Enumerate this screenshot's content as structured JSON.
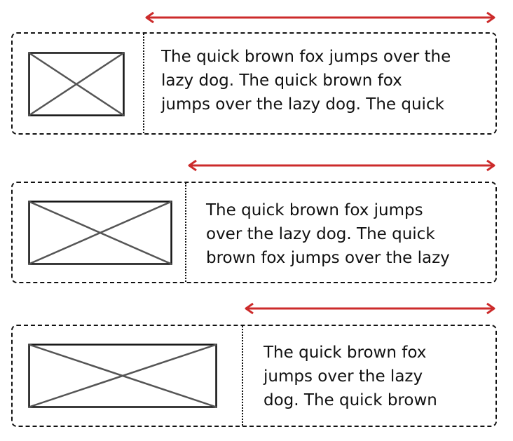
{
  "colors": {
    "arrow": "#cc2b2b",
    "border": "#111111",
    "placeholder_stroke": "#555555"
  },
  "rows": [
    {
      "lines": [
        "The quick brown fox jumps over the",
        "lazy dog. The quick brown fox",
        "jumps over the lazy dog. The quick"
      ]
    },
    {
      "lines": [
        "The quick brown fox jumps",
        "over the lazy dog. The quick",
        "brown fox jumps over the lazy"
      ]
    },
    {
      "lines": [
        "The quick brown fox",
        "jumps over the lazy",
        "dog. The quick brown"
      ]
    }
  ]
}
